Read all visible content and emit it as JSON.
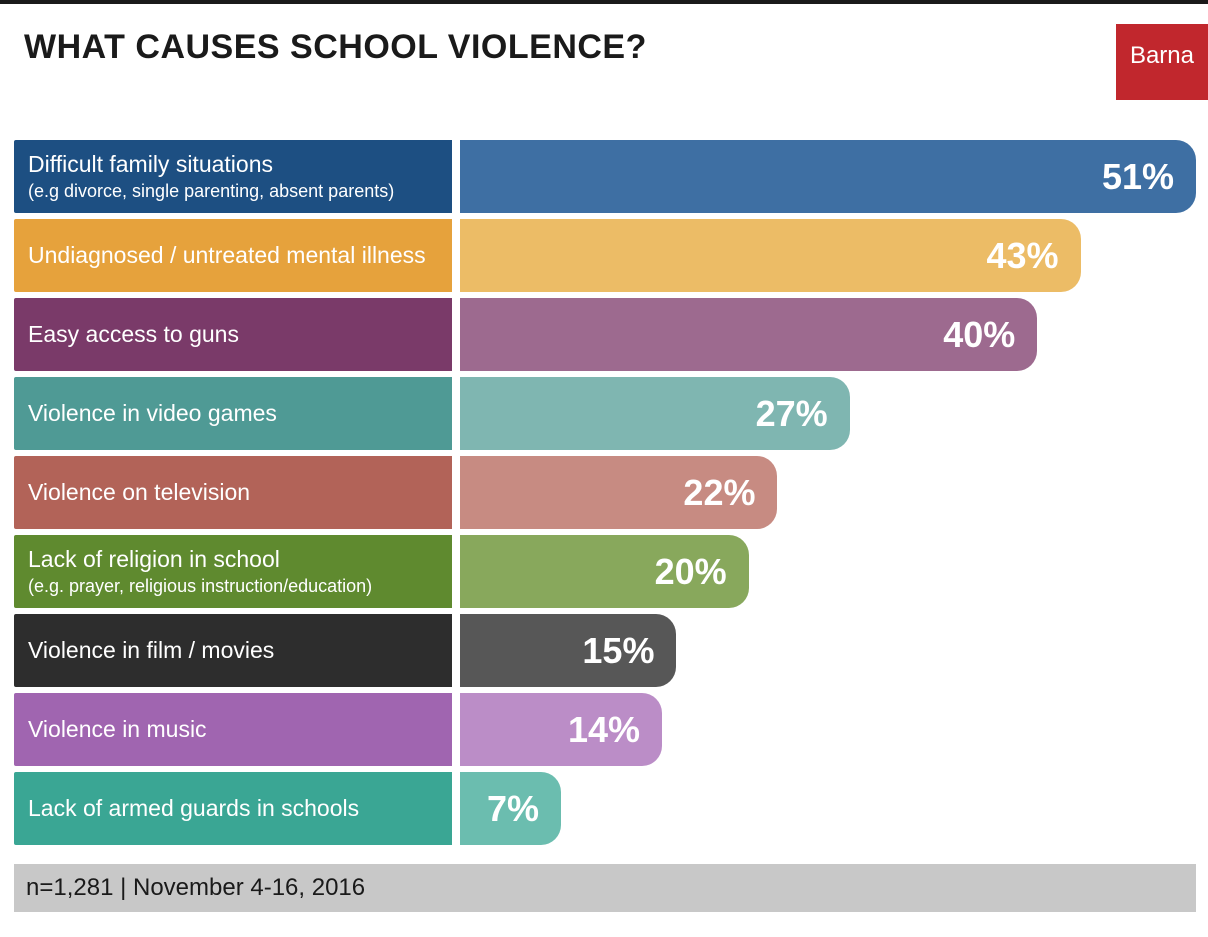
{
  "title": "WHAT CAUSES SCHOOL VIOLENCE?",
  "logo_text": "Barna",
  "logo_bg": "#c1272d",
  "max_value": 51,
  "label_text_color": "#ffffff",
  "value_text_color": "#ffffff",
  "items": [
    {
      "label": "Difficult family situations",
      "sublabel": "(e.g divorce, single parenting, absent parents)",
      "value": 51,
      "value_text": "51%",
      "label_color": "#1d4f82",
      "bar_color": "#3e6fa3"
    },
    {
      "label": "Undiagnosed / untreated mental illness",
      "sublabel": "",
      "value": 43,
      "value_text": "43%",
      "label_color": "#e6a23c",
      "bar_color": "#ecbc66"
    },
    {
      "label": "Easy access to guns",
      "sublabel": "",
      "value": 40,
      "value_text": "40%",
      "label_color": "#7a3a69",
      "bar_color": "#9d6a8f"
    },
    {
      "label": "Violence in video games",
      "sublabel": "",
      "value": 27,
      "value_text": "27%",
      "label_color": "#4f9a95",
      "bar_color": "#7fb6b1"
    },
    {
      "label": "Violence on television",
      "sublabel": "",
      "value": 22,
      "value_text": "22%",
      "label_color": "#b26358",
      "bar_color": "#c78b82"
    },
    {
      "label": "Lack of religion in school",
      "sublabel": "(e.g. prayer, religious instruction/education)",
      "value": 20,
      "value_text": "20%",
      "label_color": "#5f8a2f",
      "bar_color": "#88a85c"
    },
    {
      "label": "Violence in film / movies",
      "sublabel": "",
      "value": 15,
      "value_text": "15%",
      "label_color": "#2d2d2d",
      "bar_color": "#575757"
    },
    {
      "label": "Violence in music",
      "sublabel": "",
      "value": 14,
      "value_text": "14%",
      "label_color": "#a065b0",
      "bar_color": "#bb8dc7"
    },
    {
      "label": "Lack of armed guards in schools",
      "sublabel": "",
      "value": 7,
      "value_text": "7%",
      "label_color": "#3aa694",
      "bar_color": "#6bbdaf"
    }
  ],
  "footer_text": "n=1,281 | November 4-16, 2016",
  "footer_bg": "#c8c8c8"
}
